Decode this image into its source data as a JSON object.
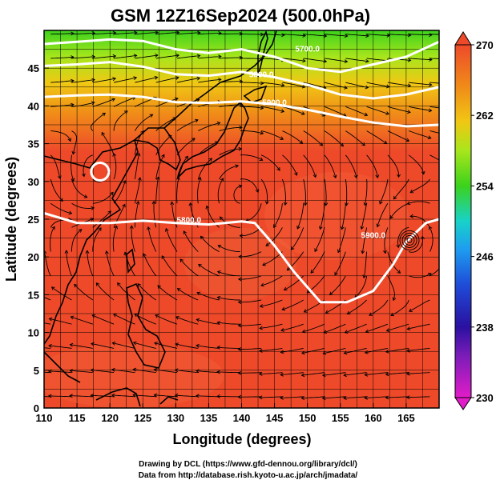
{
  "title": "GSM 12Z16Sep2024 (500.0hPa)",
  "x_axis": {
    "label": "Longitude (degrees)",
    "ticks": [
      "110",
      "115",
      "120",
      "125",
      "130",
      "135",
      "140",
      "145",
      "150",
      "155",
      "160",
      "165"
    ]
  },
  "y_axis": {
    "label": "Latitude  (degrees)",
    "ticks": [
      "0",
      "5",
      "10",
      "15",
      "20",
      "25",
      "30",
      "35",
      "40",
      "45"
    ]
  },
  "colorbar": {
    "ticks": [
      "230",
      "238",
      "246",
      "254",
      "262",
      "270"
    ],
    "colors": [
      "#e21cc8",
      "#2a10a0",
      "#1e7cf0",
      "#18d2c8",
      "#3cd21c",
      "#a8e61c",
      "#f0c814",
      "#f08c18",
      "#ee4a2a"
    ]
  },
  "contour_labels": [
    "5700.0",
    "5800.0",
    "5900.0",
    "5800.0",
    "5900.0"
  ],
  "credits": [
    "Drawing by DCL (https://www.gfd-dennou.org/library/dcl/)",
    "Data from http://database.rish.kyoto-u.ac.jp/arch/jmadata/"
  ],
  "chart_data": {
    "type": "map",
    "field": "temperature (K) at 500.0hPa with streamlines and geopotential height contours",
    "xlim": [
      110,
      170
    ],
    "ylim": [
      0,
      50
    ],
    "color_range": [
      230,
      270
    ],
    "contours": [
      {
        "label": "5700.0",
        "lon": [
          110,
          115,
          120,
          125,
          130,
          135,
          140,
          145,
          150,
          155,
          160,
          165,
          170
        ],
        "lat": [
          48.2,
          48.5,
          48.8,
          48.6,
          47.5,
          47.0,
          47.5,
          46.5,
          45.0,
          44.5,
          45.5,
          46.5,
          48.5
        ]
      },
      {
        "label": "5800.0",
        "lon": [
          110,
          115,
          120,
          125,
          130,
          135,
          140,
          145,
          150,
          155,
          160,
          165,
          170
        ],
        "lat": [
          45.3,
          45.5,
          45.8,
          45.2,
          44.2,
          44.0,
          44.5,
          43.8,
          42.8,
          41.5,
          41.0,
          41.5,
          42.5
        ]
      },
      {
        "label": "5900.0",
        "lon": [
          110,
          115,
          120,
          125,
          130,
          135,
          140,
          145,
          150,
          155,
          160,
          165,
          170
        ],
        "lat": [
          41.2,
          41.4,
          41.5,
          41.2,
          40.5,
          40.4,
          40.6,
          40.2,
          39.5,
          38.6,
          37.8,
          37.3,
          37.5
        ]
      },
      {
        "label": "5900.0",
        "lon": [
          110,
          115,
          120,
          125,
          130,
          135,
          140,
          142,
          145,
          148,
          152,
          156,
          160,
          163,
          165,
          168,
          170
        ],
        "lat": [
          25.8,
          24.5,
          24.5,
          24.8,
          24.5,
          24.3,
          24.7,
          24.5,
          21.5,
          18.0,
          14.0,
          14.0,
          15.5,
          19.0,
          22.0,
          24.5,
          25.0
        ]
      }
    ],
    "cyclones": [
      {
        "lon": 118.5,
        "lat": 31.3
      },
      {
        "lon": 165.5,
        "lat": 22.2
      }
    ]
  }
}
